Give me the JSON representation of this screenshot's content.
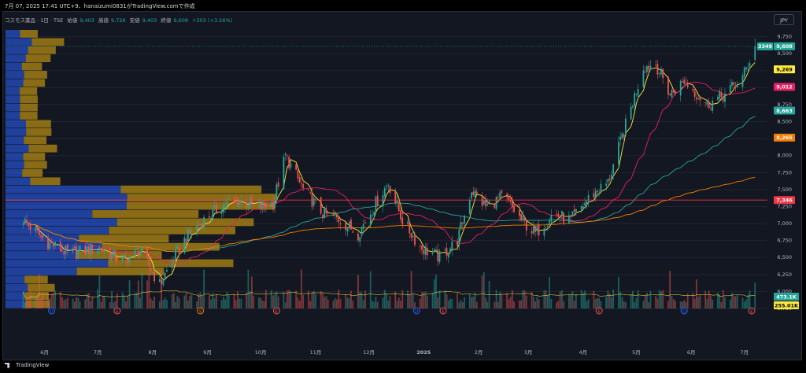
{
  "header": {
    "title": "7月 07, 2025 17:41 UTC+9、hanaizumi0831がTradingView.comで作成"
  },
  "legend": {
    "symbol": "コスモス薬品 · 1日 · TSE",
    "open_label": "始値",
    "open": "9,403",
    "high_label": "高値",
    "high": "9,726",
    "low_label": "安値",
    "low": "9,403",
    "close_label": "終値",
    "close": "9,608",
    "change": "+303 (+3.26%)"
  },
  "currency_button": "JPY",
  "footer": {
    "brand": "TradingView"
  },
  "colors": {
    "background": "#131722",
    "up": "#26a69a",
    "down": "#ef5350",
    "ma_fast": "#ffeb3b",
    "ma_mid": "#e91e63",
    "ma_slow": "#26a69a",
    "ma_long": "#f57c00",
    "hline": "#f23645",
    "vp_blue": "#2962ff",
    "vp_gold": "#ffc107"
  },
  "chart_data": {
    "type": "candlestick",
    "symbol": "コスモス薬品",
    "interval": "1日",
    "exchange": "TSE",
    "currency": "JPY",
    "ylim": [
      5750,
      9850
    ],
    "y_ticks": [
      "9,750",
      "9,500",
      "9,250",
      "9,000",
      "8,750",
      "8,500",
      "8,250",
      "8,000",
      "7,750",
      "7,500",
      "7,250",
      "7,000",
      "6,750",
      "6,500",
      "6,250",
      "6,000",
      "5,750"
    ],
    "x_ticks": [
      "6月",
      "7月",
      "8月",
      "9月",
      "10月",
      "11月",
      "12月",
      "2025",
      "2月",
      "3月",
      "4月",
      "5月",
      "6月",
      "7月"
    ],
    "close_trend": [
      {
        "x": "2024-05-20",
        "y": 7050
      },
      {
        "x": "2024-06-01",
        "y": 6750
      },
      {
        "x": "2024-06-15",
        "y": 6550
      },
      {
        "x": "2024-07-01",
        "y": 6650
      },
      {
        "x": "2024-07-15",
        "y": 6450
      },
      {
        "x": "2024-07-25",
        "y": 6600
      },
      {
        "x": "2024-08-05",
        "y": 6100
      },
      {
        "x": "2024-08-10",
        "y": 6350
      },
      {
        "x": "2024-08-20",
        "y": 6800
      },
      {
        "x": "2024-09-01",
        "y": 7100
      },
      {
        "x": "2024-09-15",
        "y": 7350
      },
      {
        "x": "2024-10-01",
        "y": 7250
      },
      {
        "x": "2024-10-08",
        "y": 7300
      },
      {
        "x": "2024-10-15",
        "y": 8000
      },
      {
        "x": "2024-10-25",
        "y": 7500
      },
      {
        "x": "2024-11-05",
        "y": 7150
      },
      {
        "x": "2024-11-15",
        "y": 7050
      },
      {
        "x": "2024-11-25",
        "y": 6850
      },
      {
        "x": "2024-12-05",
        "y": 7300
      },
      {
        "x": "2024-12-12",
        "y": 7600
      },
      {
        "x": "2024-12-20",
        "y": 7050
      },
      {
        "x": "2024-12-30",
        "y": 6650
      },
      {
        "x": "2025-01-10",
        "y": 6500
      },
      {
        "x": "2025-01-20",
        "y": 6750
      },
      {
        "x": "2025-01-28",
        "y": 7500
      },
      {
        "x": "2025-02-05",
        "y": 7250
      },
      {
        "x": "2025-02-15",
        "y": 7400
      },
      {
        "x": "2025-02-25",
        "y": 7050
      },
      {
        "x": "2025-03-05",
        "y": 6850
      },
      {
        "x": "2025-03-15",
        "y": 7150
      },
      {
        "x": "2025-03-25",
        "y": 7050
      },
      {
        "x": "2025-04-05",
        "y": 7400
      },
      {
        "x": "2025-04-15",
        "y": 7600
      },
      {
        "x": "2025-04-25",
        "y": 8450
      },
      {
        "x": "2025-05-05",
        "y": 9300
      },
      {
        "x": "2025-05-12",
        "y": 9350
      },
      {
        "x": "2025-05-20",
        "y": 8900
      },
      {
        "x": "2025-05-28",
        "y": 9100
      },
      {
        "x": "2025-06-10",
        "y": 8750
      },
      {
        "x": "2025-06-20",
        "y": 8900
      },
      {
        "x": "2025-06-30",
        "y": 9150
      },
      {
        "x": "2025-07-07",
        "y": 9608
      }
    ],
    "last_ohlc": {
      "open": 9403,
      "high": 9726,
      "low": 9403,
      "close": 9608,
      "change": 303,
      "change_pct": 3.26
    },
    "moving_averages": [
      {
        "color": "#ffeb3b",
        "last": 9269
      },
      {
        "color": "#e91e63",
        "last": 9012
      },
      {
        "color": "#26a69a",
        "last": 8663
      },
      {
        "color": "#f57c00",
        "last": 8265
      }
    ],
    "horizontal_line": 7346,
    "price_labels": {
      "last": "9,608",
      "countdown": "3349",
      "ma_fast": "9,269",
      "ma_mid": "9,012",
      "ma_slow": "8,663",
      "ma_long": "8,265",
      "hline": "7,346"
    },
    "volume": {
      "last_label": "473.1K",
      "ma_label": "255.01K"
    },
    "event_markers": [
      {
        "x": "2024-06-05",
        "type": "D"
      },
      {
        "x": "2024-07-12",
        "type": "E"
      },
      {
        "x": "2024-08-28",
        "type": "S"
      },
      {
        "x": "2024-10-10",
        "type": "E"
      },
      {
        "x": "2024-12-28",
        "type": "D"
      },
      {
        "x": "2025-01-12",
        "type": "E"
      },
      {
        "x": "2025-04-10",
        "type": "E"
      },
      {
        "x": "2025-05-28",
        "type": "D"
      },
      {
        "x": "2025-07-07",
        "type": "E"
      }
    ]
  }
}
